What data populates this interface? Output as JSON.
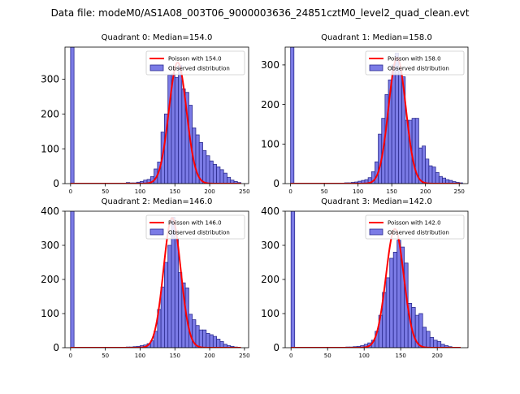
{
  "figure": {
    "suptitle": "Data file: modeM0/AS1A08_003T06_9000003636_24851cztM0_level2_quad_clean.evt"
  },
  "colors": {
    "bar_fill": "#7b7be6",
    "bar_edge": "#2b2b8f",
    "curve": "#ff0000",
    "axis": "#000000"
  },
  "chart_data": [
    {
      "type": "bar",
      "title": "Quadrant 0: Median=154.0",
      "xlim": [
        -8,
        256
      ],
      "ylim": [
        0,
        392
      ],
      "xticks": [
        0,
        50,
        100,
        150,
        200,
        250
      ],
      "yticks": [
        0,
        100,
        200,
        300
      ],
      "bin_width": 5,
      "bins": [
        [
          0,
          392
        ],
        [
          80,
          3
        ],
        [
          85,
          2
        ],
        [
          90,
          2
        ],
        [
          95,
          4
        ],
        [
          100,
          6
        ],
        [
          105,
          10
        ],
        [
          110,
          12
        ],
        [
          115,
          20
        ],
        [
          120,
          42
        ],
        [
          125,
          62
        ],
        [
          130,
          148
        ],
        [
          135,
          200
        ],
        [
          140,
          312
        ],
        [
          145,
          315
        ],
        [
          150,
          305
        ],
        [
          155,
          340
        ],
        [
          160,
          272
        ],
        [
          165,
          262
        ],
        [
          170,
          225
        ],
        [
          175,
          160
        ],
        [
          180,
          140
        ],
        [
          185,
          118
        ],
        [
          190,
          95
        ],
        [
          195,
          80
        ],
        [
          200,
          65
        ],
        [
          205,
          55
        ],
        [
          210,
          48
        ],
        [
          215,
          40
        ],
        [
          220,
          30
        ],
        [
          225,
          18
        ],
        [
          230,
          10
        ],
        [
          235,
          6
        ],
        [
          240,
          3
        ]
      ],
      "poisson_mean": 154.0,
      "poisson_peak": 348,
      "curve_range": [
        0,
        245
      ],
      "legend": {
        "curve_label": "Poisson with 154.0",
        "bar_label": "Observed distribution"
      }
    },
    {
      "type": "bar",
      "title": "Quadrant 1: Median=158.0",
      "xlim": [
        -8,
        263
      ],
      "ylim": [
        0,
        345
      ],
      "xticks": [
        0,
        50,
        100,
        150,
        200,
        250
      ],
      "yticks": [
        0,
        100,
        200,
        300
      ],
      "bin_width": 5,
      "bins": [
        [
          0,
          345
        ],
        [
          80,
          2
        ],
        [
          85,
          2
        ],
        [
          90,
          3
        ],
        [
          95,
          4
        ],
        [
          100,
          6
        ],
        [
          105,
          8
        ],
        [
          110,
          10
        ],
        [
          115,
          15
        ],
        [
          120,
          30
        ],
        [
          125,
          55
        ],
        [
          130,
          125
        ],
        [
          135,
          165
        ],
        [
          140,
          225
        ],
        [
          145,
          262
        ],
        [
          150,
          300
        ],
        [
          155,
          330
        ],
        [
          160,
          285
        ],
        [
          165,
          270
        ],
        [
          170,
          160
        ],
        [
          175,
          160
        ],
        [
          180,
          165
        ],
        [
          185,
          165
        ],
        [
          190,
          90
        ],
        [
          195,
          95
        ],
        [
          200,
          62
        ],
        [
          205,
          45
        ],
        [
          210,
          42
        ],
        [
          215,
          28
        ],
        [
          220,
          18
        ],
        [
          225,
          14
        ],
        [
          230,
          10
        ],
        [
          235,
          8
        ],
        [
          240,
          5
        ],
        [
          245,
          3
        ],
        [
          250,
          2
        ]
      ],
      "poisson_mean": 158.0,
      "poisson_peak": 318,
      "curve_range": [
        0,
        252
      ],
      "legend": {
        "curve_label": "Poisson with 158.0",
        "bar_label": "Observed distribution"
      }
    },
    {
      "type": "bar",
      "title": "Quadrant 2: Median=146.0",
      "xlim": [
        -8,
        256
      ],
      "ylim": [
        0,
        400
      ],
      "xticks": [
        0,
        50,
        100,
        150,
        200,
        250
      ],
      "yticks": [
        0,
        100,
        200,
        300,
        400
      ],
      "bin_width": 5,
      "bins": [
        [
          0,
          400
        ],
        [
          80,
          2
        ],
        [
          85,
          2
        ],
        [
          90,
          3
        ],
        [
          95,
          4
        ],
        [
          100,
          6
        ],
        [
          105,
          8
        ],
        [
          110,
          12
        ],
        [
          115,
          20
        ],
        [
          120,
          48
        ],
        [
          125,
          112
        ],
        [
          130,
          178
        ],
        [
          135,
          250
        ],
        [
          140,
          300
        ],
        [
          145,
          382
        ],
        [
          150,
          320
        ],
        [
          155,
          220
        ],
        [
          160,
          190
        ],
        [
          165,
          175
        ],
        [
          170,
          98
        ],
        [
          175,
          82
        ],
        [
          180,
          65
        ],
        [
          185,
          52
        ],
        [
          190,
          52
        ],
        [
          195,
          42
        ],
        [
          200,
          38
        ],
        [
          205,
          33
        ],
        [
          210,
          25
        ],
        [
          215,
          18
        ],
        [
          220,
          10
        ],
        [
          225,
          6
        ],
        [
          230,
          4
        ],
        [
          235,
          2
        ]
      ],
      "poisson_mean": 146.0,
      "poisson_peak": 380,
      "curve_range": [
        0,
        245
      ],
      "legend": {
        "curve_label": "Poisson with 146.0",
        "bar_label": "Observed distribution"
      }
    },
    {
      "type": "bar",
      "title": "Quadrant 3: Median=142.0",
      "xlim": [
        -8,
        242
      ],
      "ylim": [
        0,
        400
      ],
      "xticks": [
        0,
        50,
        100,
        150,
        200
      ],
      "yticks": [
        0,
        100,
        200,
        300,
        400
      ],
      "bin_width": 5,
      "bins": [
        [
          0,
          400
        ],
        [
          75,
          2
        ],
        [
          80,
          2
        ],
        [
          85,
          3
        ],
        [
          90,
          4
        ],
        [
          95,
          6
        ],
        [
          100,
          10
        ],
        [
          105,
          14
        ],
        [
          110,
          22
        ],
        [
          115,
          48
        ],
        [
          120,
          95
        ],
        [
          125,
          162
        ],
        [
          130,
          205
        ],
        [
          135,
          262
        ],
        [
          140,
          280
        ],
        [
          145,
          315
        ],
        [
          150,
          295
        ],
        [
          155,
          248
        ],
        [
          160,
          130
        ],
        [
          165,
          118
        ],
        [
          170,
          95
        ],
        [
          175,
          100
        ],
        [
          180,
          60
        ],
        [
          185,
          48
        ],
        [
          190,
          30
        ],
        [
          195,
          22
        ],
        [
          200,
          18
        ],
        [
          205,
          10
        ],
        [
          210,
          6
        ],
        [
          215,
          3
        ]
      ],
      "poisson_mean": 142.0,
      "poisson_peak": 348,
      "curve_range": [
        0,
        232
      ],
      "legend": {
        "curve_label": "Poisson with 142.0",
        "bar_label": "Observed distribution"
      }
    }
  ]
}
